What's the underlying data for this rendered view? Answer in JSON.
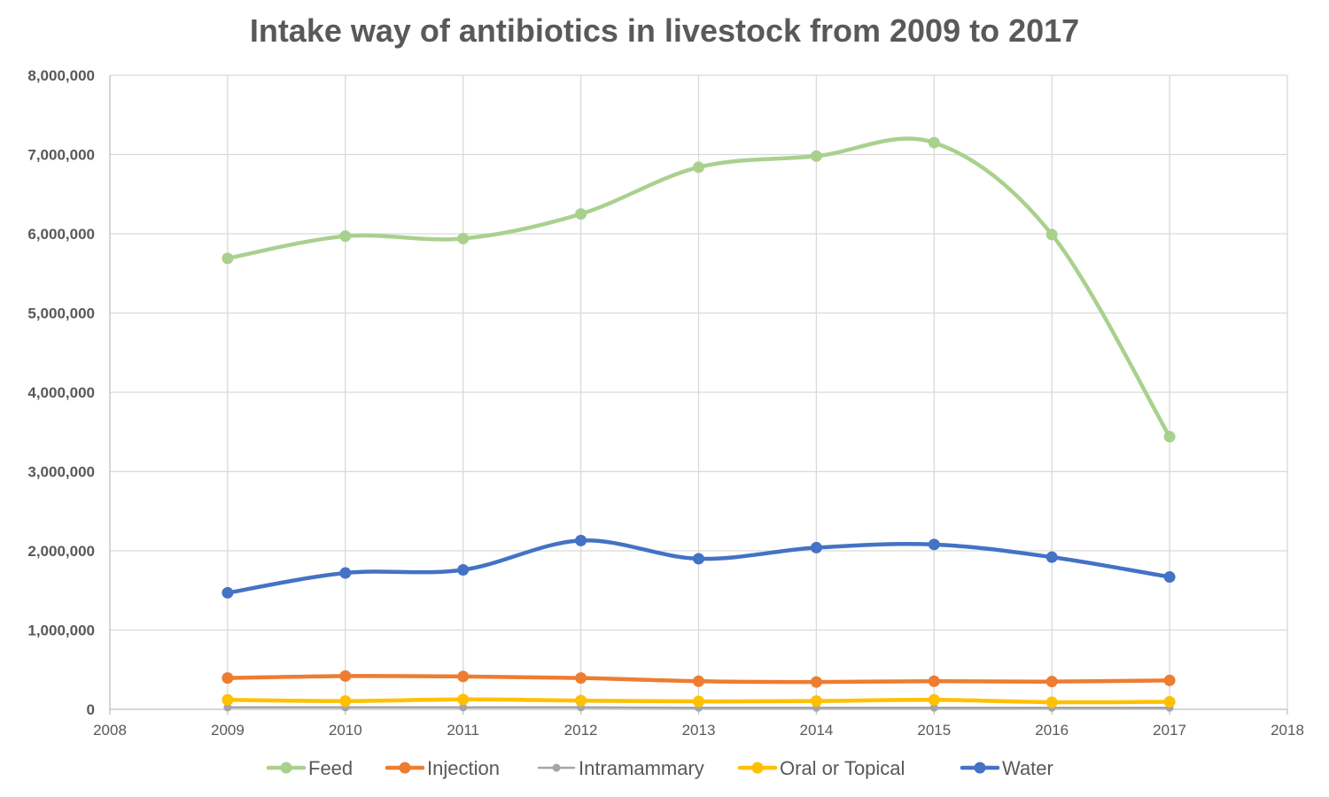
{
  "chart_data": {
    "type": "line",
    "title": "Intake way of antibiotics in livestock from 2009 to 2017",
    "xlabel": "",
    "ylabel": "",
    "xlim": [
      2008,
      2018
    ],
    "ylim": [
      0,
      8000000
    ],
    "x_ticks": [
      "2008",
      "2009",
      "2010",
      "2011",
      "2012",
      "2013",
      "2014",
      "2015",
      "2016",
      "2017",
      "2018"
    ],
    "y_ticks": [
      "0",
      "1,000,000",
      "2,000,000",
      "3,000,000",
      "4,000,000",
      "5,000,000",
      "6,000,000",
      "7,000,000",
      "8,000,000"
    ],
    "grid": true,
    "smooth": true,
    "legend_position": "bottom",
    "x": [
      2009,
      2010,
      2011,
      2012,
      2013,
      2014,
      2015,
      2016,
      2017
    ],
    "series": [
      {
        "name": "Feed",
        "color": "#a9d18e",
        "values": [
          5690000,
          5970000,
          5940000,
          6250000,
          6840000,
          6980000,
          7150000,
          5990000,
          3440000
        ]
      },
      {
        "name": "Injection",
        "color": "#ed7d31",
        "values": [
          395000,
          420000,
          415000,
          395000,
          355000,
          345000,
          355000,
          350000,
          365000
        ]
      },
      {
        "name": "Intramammary",
        "color": "#a5a5a5",
        "values": [
          25000,
          25000,
          25000,
          25000,
          20000,
          20000,
          20000,
          20000,
          20000
        ]
      },
      {
        "name": "Oral or Topical",
        "color": "#ffc000",
        "values": [
          120000,
          105000,
          125000,
          110000,
          100000,
          105000,
          120000,
          90000,
          95000
        ]
      },
      {
        "name": "Water",
        "color": "#4472c4",
        "values": [
          1470000,
          1720000,
          1760000,
          2130000,
          1900000,
          2040000,
          2080000,
          1920000,
          1670000
        ]
      }
    ]
  }
}
